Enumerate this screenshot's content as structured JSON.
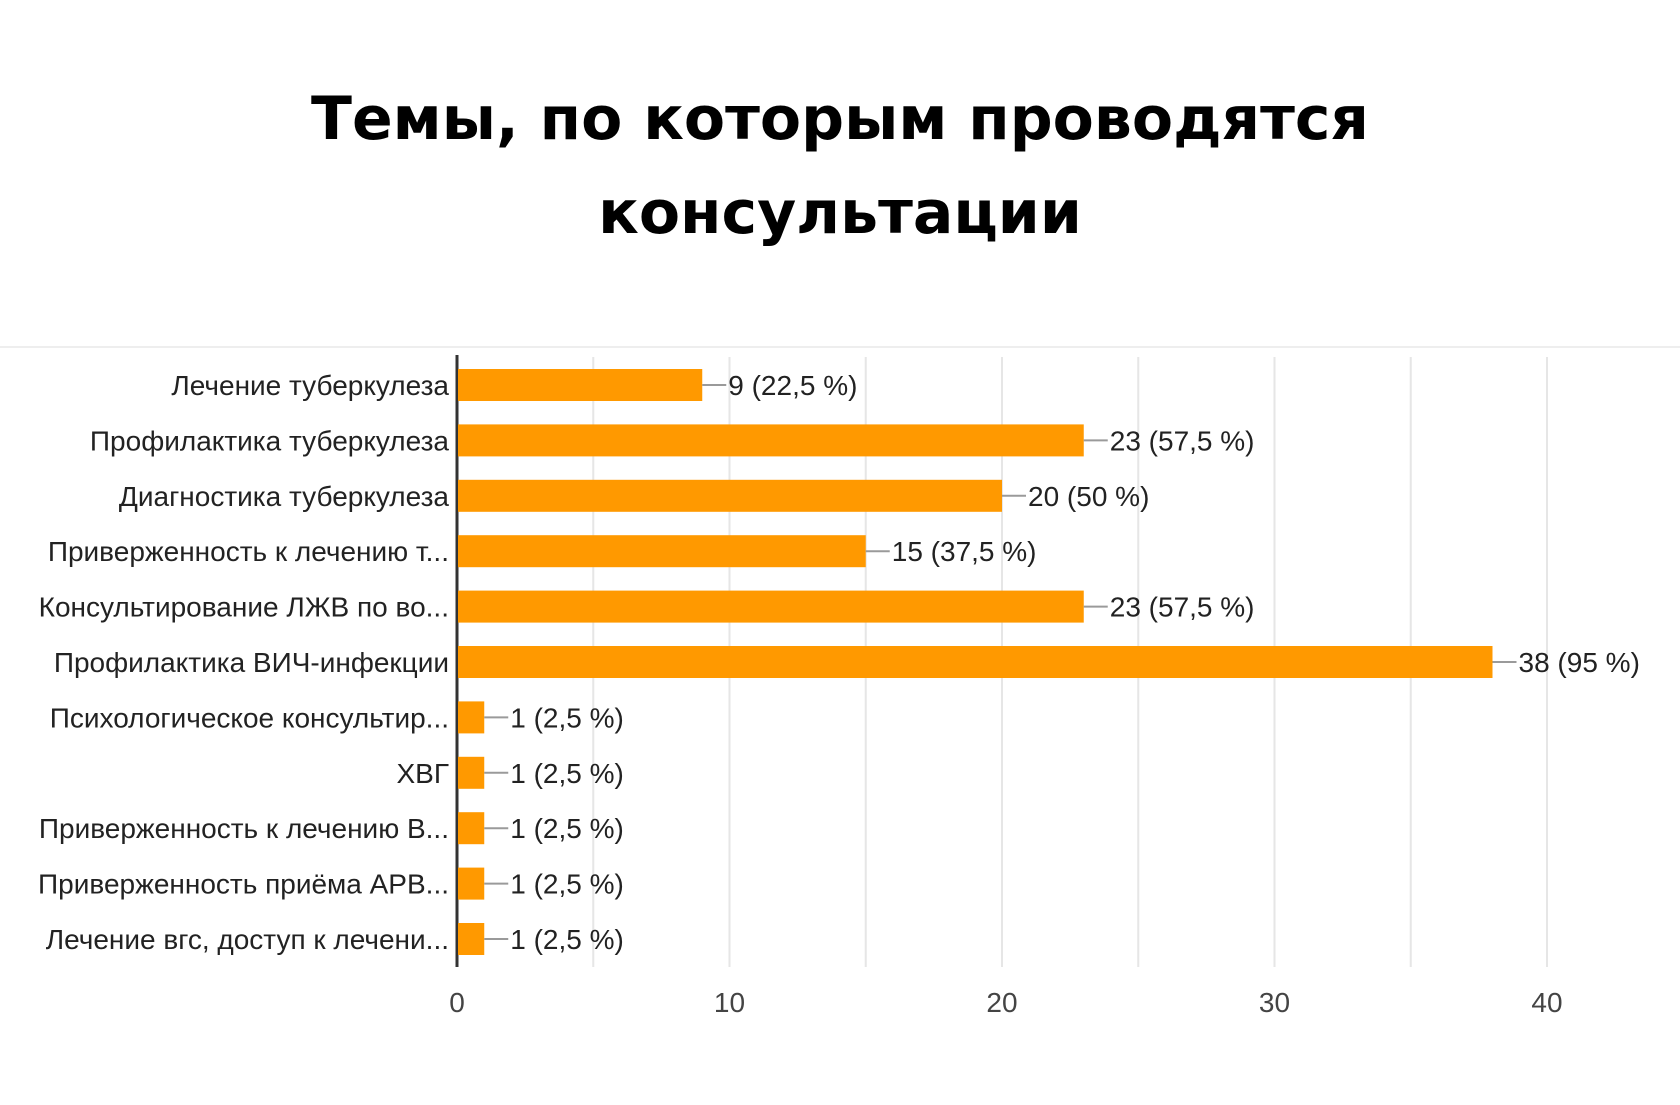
{
  "slide": {
    "title_line1": "Темы, по которым проводятся",
    "title_line2": "консультации"
  },
  "chart_data": {
    "type": "bar",
    "orientation": "horizontal",
    "categories": [
      "Лечение туберкулеза",
      "Профилактика туберкулеза",
      "Диагностика туберкулеза",
      "Приверженность к лечению т...",
      "Консультирование ЛЖВ по во...",
      "Профилактика ВИЧ-инфекции",
      "Психологическое консультир...",
      "ХВГ",
      "Приверженность к лечению В...",
      "Приверженность приёма АРВ...",
      "Лечение вгс, доступ к лечени..."
    ],
    "values": [
      9,
      23,
      20,
      15,
      23,
      38,
      1,
      1,
      1,
      1,
      1
    ],
    "data_labels": [
      "9 (22,5 %)",
      "23 (57,5 %)",
      "20 (50 %)",
      "15 (37,5 %)",
      "23 (57,5 %)",
      "38 (95 %)",
      "1 (2,5 %)",
      "1 (2,5 %)",
      "1 (2,5 %)",
      "1 (2,5 %)",
      "1 (2,5 %)"
    ],
    "xlim": [
      0,
      40
    ],
    "x_ticks": [
      "0",
      "10",
      "20",
      "30",
      "40"
    ],
    "grid": true,
    "bar_color": "#ff9900",
    "grid_color": "#e6e6e6",
    "axis_color": "#333333"
  }
}
